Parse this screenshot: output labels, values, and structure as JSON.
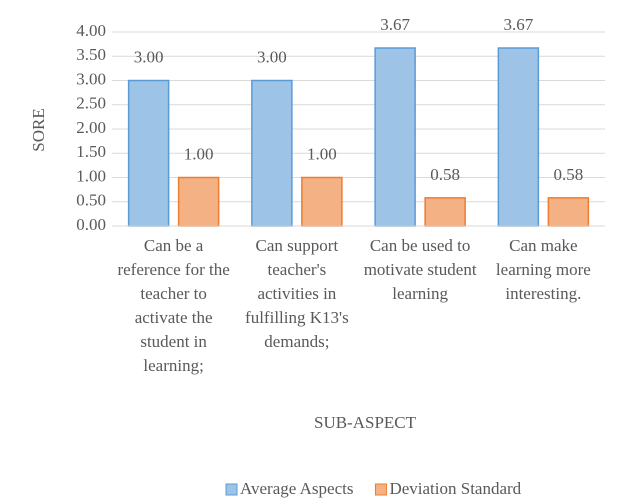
{
  "chart_data": {
    "type": "bar",
    "categories": [
      "Can be a reference for the teacher to activate the student in learning;",
      "Can support teacher's activities in fulfilling K13's demands;",
      "Can be used to motivate student learning",
      "Can make learning more interesting."
    ],
    "series": [
      {
        "name": "Average Aspects",
        "color": "#9dc3e6",
        "values": [
          3.0,
          3.0,
          3.67,
          3.67
        ],
        "value_labels": [
          "3.00",
          "3.00",
          "3.67",
          "3.67"
        ]
      },
      {
        "name": "Deviation Standard",
        "color": "#f4b183",
        "values": [
          1.0,
          1.0,
          0.58,
          0.58
        ],
        "value_labels": [
          "1.00",
          "1.00",
          "0.58",
          "0.58"
        ]
      }
    ],
    "ylim": [
      0,
      4
    ],
    "yticks": [
      {
        "value": 0,
        "label": "0.00"
      },
      {
        "value": 0.5,
        "label": "0.50"
      },
      {
        "value": 1,
        "label": "1.00"
      },
      {
        "value": 1.5,
        "label": "1.50"
      },
      {
        "value": 2,
        "label": "2.00"
      },
      {
        "value": 2.5,
        "label": "2.50"
      },
      {
        "value": 3,
        "label": "3.00"
      },
      {
        "value": 3.5,
        "label": "3.50"
      },
      {
        "value": 4,
        "label": "4.00"
      }
    ],
    "ylabel": "SORE",
    "xlabel": "SUB-ASPECT",
    "grid": true,
    "legend": "bottom"
  }
}
